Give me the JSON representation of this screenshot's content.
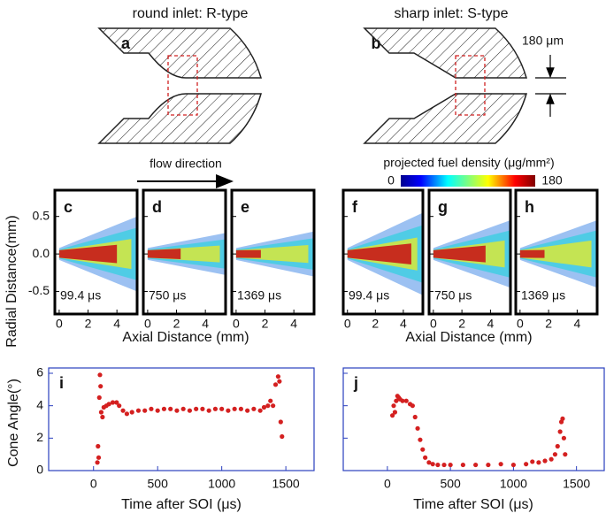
{
  "schematics": [
    {
      "title": "round inlet: R-type",
      "label": "a"
    },
    {
      "title": "sharp inlet: S-type",
      "label": "b",
      "dimension": "180 μm"
    }
  ],
  "flow_direction": "flow direction",
  "colorbar": {
    "title": "projected fuel density (μg/mm²)",
    "min": 0,
    "max": 180
  },
  "heatmaps": {
    "ylabel": "Radial Distance(mm)",
    "xlabel": "Axial Distance (mm)",
    "xlim": [
      -0.3,
      5.4
    ],
    "xticks": [
      0,
      2,
      4
    ],
    "ylim": [
      -0.8,
      0.85
    ],
    "yticks": [
      0.5,
      {
        "value": 0,
        "label": "0.0"
      },
      -0.5
    ],
    "panels": [
      {
        "label": "c",
        "time": "99.4 μs"
      },
      {
        "label": "d",
        "time": "750 μs"
      },
      {
        "label": "e",
        "time": "1369 μs"
      },
      {
        "label": "f",
        "time": "99.4 μs"
      },
      {
        "label": "g",
        "time": "750 μs"
      },
      {
        "label": "h",
        "time": "1369 μs"
      }
    ]
  },
  "chart_data": [
    {
      "type": "scatter",
      "label": "i",
      "ylabel": "Cone Angle(°)",
      "xlabel": "Time after SOI (μs)",
      "color": "#d42020",
      "xlim": [
        -350,
        1720
      ],
      "xticks": [
        0,
        500,
        1000,
        1500
      ],
      "ylim": [
        0,
        6
      ],
      "yticks": [
        0,
        2,
        4,
        6
      ],
      "x": [
        30,
        35,
        40,
        45,
        50,
        55,
        60,
        70,
        80,
        100,
        120,
        150,
        180,
        200,
        230,
        260,
        300,
        350,
        400,
        450,
        500,
        550,
        600,
        650,
        700,
        750,
        800,
        850,
        900,
        950,
        1000,
        1050,
        1100,
        1150,
        1200,
        1250,
        1300,
        1330,
        1360,
        1380,
        1400,
        1420,
        1440,
        1450,
        1460,
        1470
      ],
      "values": [
        0.5,
        1.5,
        0.8,
        4.5,
        5.9,
        5.2,
        3.6,
        3.3,
        3.9,
        4.0,
        4.1,
        4.2,
        4.2,
        4.0,
        3.7,
        3.5,
        3.6,
        3.7,
        3.7,
        3.8,
        3.7,
        3.8,
        3.8,
        3.7,
        3.8,
        3.7,
        3.8,
        3.8,
        3.7,
        3.8,
        3.8,
        3.7,
        3.8,
        3.8,
        3.7,
        3.8,
        3.7,
        3.9,
        4.0,
        4.3,
        4.0,
        5.3,
        5.8,
        5.5,
        3.0,
        2.1
      ]
    },
    {
      "type": "scatter",
      "label": "j",
      "xlabel": "Time after SOI (μs)",
      "color": "#d42020",
      "xlim": [
        -350,
        1720
      ],
      "xticks": [
        0,
        500,
        1000,
        1500
      ],
      "ylim": [
        0,
        6
      ],
      "yticks": [
        0,
        2,
        4,
        6
      ],
      "x": [
        40,
        50,
        60,
        70,
        80,
        90,
        100,
        120,
        150,
        180,
        200,
        220,
        240,
        260,
        280,
        300,
        330,
        360,
        400,
        450,
        500,
        600,
        700,
        800,
        900,
        1000,
        1100,
        1150,
        1200,
        1250,
        1300,
        1330,
        1350,
        1370,
        1380,
        1390,
        1400,
        1410
      ],
      "values": [
        3.4,
        4.0,
        3.6,
        4.3,
        4.6,
        4.5,
        4.4,
        4.3,
        4.3,
        4.1,
        4.0,
        3.3,
        2.6,
        1.9,
        1.3,
        0.8,
        0.5,
        0.4,
        0.35,
        0.35,
        0.35,
        0.35,
        0.35,
        0.35,
        0.4,
        0.35,
        0.4,
        0.55,
        0.5,
        0.6,
        0.7,
        1.0,
        1.5,
        2.4,
        3.0,
        3.2,
        2.0,
        1.0
      ]
    }
  ]
}
